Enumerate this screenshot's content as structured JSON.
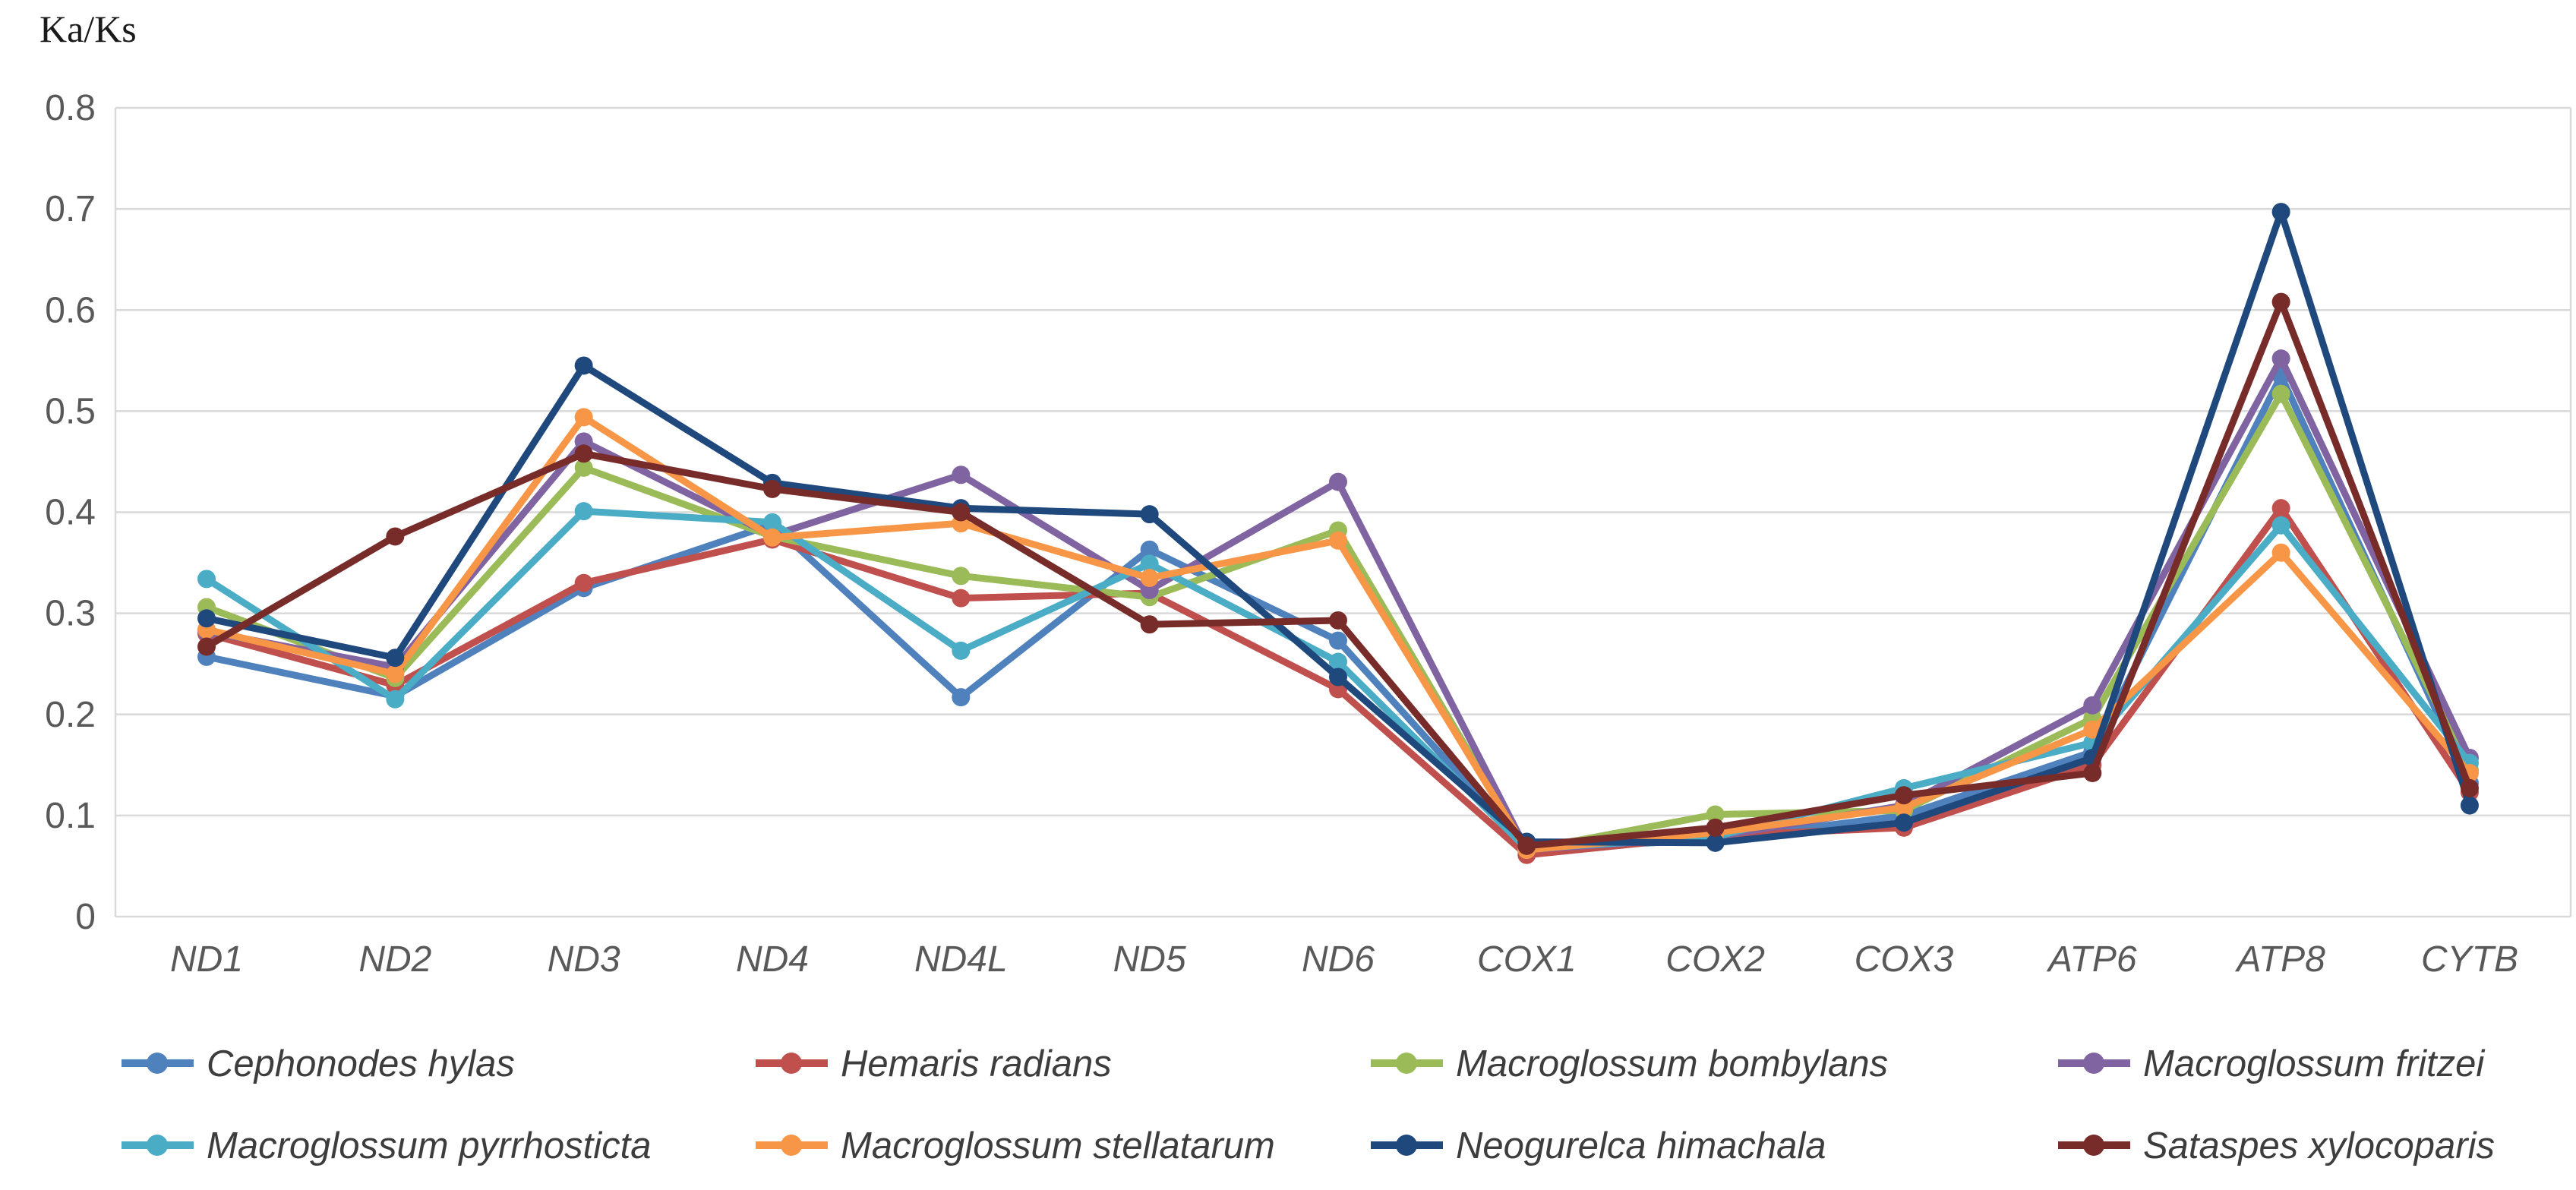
{
  "title": "Ka/Ks",
  "chart_data": {
    "type": "line",
    "title": "Ka/Ks",
    "xlabel": "",
    "ylabel": "Ka/Ks",
    "ylim": [
      0,
      0.8
    ],
    "grid": true,
    "legend_position": "bottom",
    "marker": "circle",
    "ytick_labels": [
      "0",
      "0.1",
      "0.2",
      "0.3",
      "0.4",
      "0.5",
      "0.6",
      "0.7",
      "0.8"
    ],
    "categories": [
      "ND1",
      "ND2",
      "ND3",
      "ND4",
      "ND4L",
      "ND5",
      "ND6",
      "COX1",
      "COX2",
      "COX3",
      "ATP6",
      "ATP8",
      "CYTB"
    ],
    "series": [
      {
        "name": "Cephonodes hylas",
        "color": "#4F81BD",
        "values": [
          0.257,
          0.218,
          0.325,
          0.388,
          0.217,
          0.363,
          0.273,
          0.067,
          0.076,
          0.1,
          0.163,
          0.535,
          0.132
        ]
      },
      {
        "name": "Hemaris radians",
        "color": "#C0504D",
        "values": [
          0.28,
          0.229,
          0.33,
          0.373,
          0.315,
          0.32,
          0.225,
          0.061,
          0.08,
          0.088,
          0.15,
          0.404,
          0.123
        ]
      },
      {
        "name": "Macroglossum bombylans",
        "color": "#9BBB59",
        "values": [
          0.306,
          0.236,
          0.444,
          0.376,
          0.337,
          0.316,
          0.382,
          0.066,
          0.101,
          0.105,
          0.196,
          0.517,
          0.145
        ]
      },
      {
        "name": "Macroglossum fritzei",
        "color": "#8064A2",
        "values": [
          0.282,
          0.247,
          0.47,
          0.377,
          0.437,
          0.323,
          0.43,
          0.066,
          0.079,
          0.11,
          0.209,
          0.552,
          0.157
        ]
      },
      {
        "name": "Macroglossum pyrrhosticta",
        "color": "#4BACC6",
        "values": [
          0.334,
          0.215,
          0.401,
          0.39,
          0.263,
          0.349,
          0.252,
          0.067,
          0.079,
          0.127,
          0.172,
          0.387,
          0.152
        ]
      },
      {
        "name": "Macroglossum stellatarum",
        "color": "#F79646",
        "values": [
          0.284,
          0.24,
          0.494,
          0.375,
          0.389,
          0.335,
          0.372,
          0.066,
          0.083,
          0.108,
          0.185,
          0.36,
          0.142
        ]
      },
      {
        "name": "Neogurelca himachala",
        "color": "#1F497D",
        "values": [
          0.295,
          0.256,
          0.545,
          0.429,
          0.404,
          0.398,
          0.237,
          0.074,
          0.073,
          0.093,
          0.157,
          0.697,
          0.11
        ]
      },
      {
        "name": "Sataspes xylocoparis",
        "color": "#772C2A",
        "values": [
          0.267,
          0.376,
          0.458,
          0.423,
          0.4,
          0.289,
          0.293,
          0.07,
          0.088,
          0.12,
          0.142,
          0.608,
          0.127
        ]
      }
    ]
  },
  "colors": {
    "gridline": "#D9D9D9",
    "tick_label": "#595959",
    "axis_title": "#1a1a1a",
    "legend_text": "#3d3d3d",
    "background": "#ffffff"
  }
}
